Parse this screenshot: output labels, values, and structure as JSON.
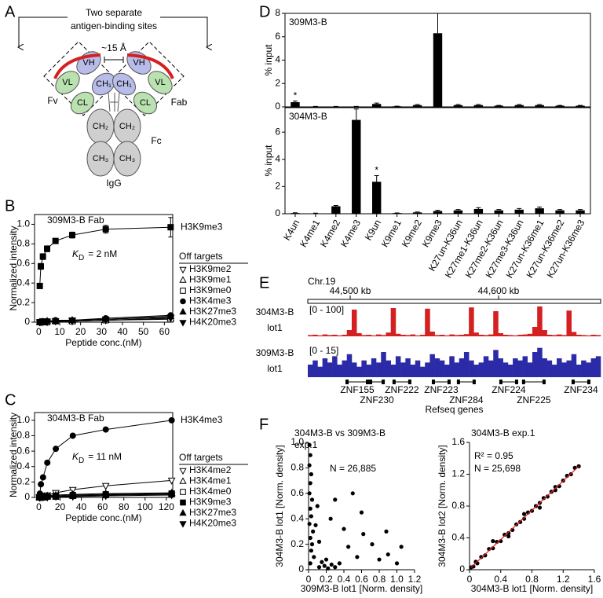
{
  "panel_labels": [
    "A",
    "B",
    "C",
    "D",
    "E",
    "F"
  ],
  "diagram": {
    "caption_lines": [
      "Two separate",
      "antigen-binding sites"
    ],
    "distance": "~15 Å",
    "domains": {
      "vh": "VH",
      "vl": "VL",
      "ch1": "CH₁",
      "cl": "CL",
      "ch2": "CH₂",
      "ch3": "CH₃"
    },
    "labels": {
      "fv": "Fv",
      "fab": "Fab",
      "fc": "Fc",
      "igg": "IgG"
    }
  },
  "chart_data": [
    {
      "type": "line",
      "title": "309M3-B Fab",
      "xlabel": "Peptide conc.(nM)",
      "ylabel": "Normalized intensity",
      "x": [
        0.5,
        1,
        2,
        4,
        8,
        16,
        32,
        63
      ],
      "xlim": [
        -2,
        64
      ],
      "xticks": [
        0,
        10,
        20,
        30,
        40,
        50,
        60
      ],
      "ylim": [
        0,
        1.1
      ],
      "yticks": [
        0,
        0.2,
        0.4,
        0.6,
        0.8,
        {
          "value": 1,
          "label": "1.0"
        }
      ],
      "kd": {
        "symbol": "K",
        "subscript": "D",
        "text": "= 2 nM"
      },
      "legend_title": "Off targets",
      "series": [
        {
          "name": "H3K9me3",
          "color": "#000000",
          "marker": "square",
          "values": [
            0.37,
            0.57,
            0.67,
            0.75,
            0.83,
            0.89,
            0.95,
            0.97
          ],
          "errors": [
            0.02,
            0.03,
            0.03,
            0.03,
            0.02,
            0.03,
            0.04,
            0.1
          ]
        },
        {
          "name": "H3K9me2",
          "color": "#000000",
          "marker": "triangle-down-open",
          "values": [
            0,
            0,
            0.01,
            0.01,
            0.01,
            0.02,
            0.03,
            0.05
          ]
        },
        {
          "name": "H3K9me1",
          "color": "#000000",
          "marker": "triangle-up-open",
          "values": [
            0,
            0,
            0,
            0.01,
            0.01,
            0.01,
            0.02,
            0.04
          ]
        },
        {
          "name": "H3K9me0",
          "color": "#000000",
          "marker": "square-open",
          "values": [
            0,
            0,
            0,
            0,
            0.01,
            0.01,
            0.02,
            0.03
          ]
        },
        {
          "name": "H3K4me3",
          "color": "#000000",
          "marker": "circle",
          "values": [
            0,
            0,
            0.01,
            0.01,
            0.02,
            0.02,
            0.04,
            0.07
          ]
        },
        {
          "name": "H3K27me3",
          "color": "#000000",
          "marker": "triangle-up",
          "values": [
            0,
            0,
            0,
            0.01,
            0.01,
            0.02,
            0.03,
            0.06
          ]
        },
        {
          "name": "H4K20me3",
          "color": "#000000",
          "marker": "triangle-down",
          "values": [
            0,
            0,
            0,
            0,
            0.01,
            0.01,
            0.02,
            0.04
          ]
        }
      ]
    },
    {
      "type": "line",
      "title": "304M3-B Fab",
      "xlabel": "Peptide conc.(nM)",
      "ylabel": "Normalized intensity",
      "x": [
        0.5,
        1,
        2,
        4,
        8,
        16,
        32,
        63,
        125
      ],
      "xlim": [
        -4,
        126
      ],
      "xticks": [
        0,
        20,
        40,
        60,
        80,
        100,
        120
      ],
      "ylim": [
        0,
        1.1
      ],
      "yticks": [
        0,
        0.2,
        0.4,
        0.6,
        0.8,
        {
          "value": 1,
          "label": "1.0"
        }
      ],
      "kd": {
        "symbol": "K",
        "subscript": "D",
        "text": "= 11 nM"
      },
      "legend_title": "Off targets",
      "series": [
        {
          "name": "H3K4me3",
          "color": "#000000",
          "marker": "circle",
          "values": [
            0.02,
            0.05,
            0.17,
            0.26,
            0.45,
            0.63,
            0.8,
            0.88,
            1.0
          ]
        },
        {
          "name": "H3K4me2",
          "color": "#000000",
          "marker": "triangle-down-open",
          "values": [
            0,
            0,
            0.01,
            0.02,
            0.03,
            0.06,
            0.1,
            0.15,
            0.22
          ]
        },
        {
          "name": "H3K4me1",
          "color": "#000000",
          "marker": "triangle-up-open",
          "values": [
            0,
            0,
            0,
            0.01,
            0.02,
            0.03,
            0.04,
            0.05,
            0.06
          ]
        },
        {
          "name": "H3K4me0",
          "color": "#000000",
          "marker": "square-open",
          "values": [
            0,
            0,
            0,
            0,
            0.01,
            0.01,
            0.02,
            0.03,
            0.04
          ]
        },
        {
          "name": "H3K9me3",
          "color": "#000000",
          "marker": "square",
          "values": [
            0,
            0,
            0,
            0.01,
            0.01,
            0.02,
            0.03,
            0.04,
            0.05
          ]
        },
        {
          "name": "H3K27me3",
          "color": "#000000",
          "marker": "triangle-up",
          "values": [
            0,
            0,
            0,
            0,
            0.01,
            0.01,
            0.02,
            0.03,
            0.05
          ]
        },
        {
          "name": "H4K20me3",
          "color": "#000000",
          "marker": "triangle-down",
          "values": [
            0,
            0,
            0,
            0,
            0,
            0.01,
            0.01,
            0.02,
            0.03
          ]
        }
      ]
    },
    {
      "type": "bar",
      "title": "309M3-B",
      "ylabel": "% input",
      "color": "#000000",
      "values": [
        0.4,
        0.03,
        0.03,
        0.03,
        0.25,
        0.05,
        0.15,
        6.3,
        0.15,
        0.15,
        0.1,
        0.15,
        0.15,
        0.1,
        0.1
      ],
      "errors": [
        0.1,
        0.01,
        0.01,
        0.01,
        0.08,
        0.01,
        0.05,
        1.7,
        0.05,
        0.05,
        0.03,
        0.05,
        0.05,
        0.03,
        0.03
      ],
      "ylim": [
        0,
        8
      ],
      "yticks": [
        0,
        2,
        4,
        6,
        8
      ],
      "annotations": [
        {
          "text": "*",
          "index": 0
        }
      ]
    },
    {
      "type": "bar",
      "title": "304M3-B",
      "ylabel": "% input",
      "color": "#000000",
      "categories": [
        "K4un",
        "K4me1",
        "K4me2",
        "K4me3",
        "K9un",
        "K9me1",
        "K9me2",
        "K9me3",
        "K27un-K36un",
        "K27me1-K36un",
        "K27me2-K36un",
        "K27me3-K36un",
        "K27un-K36me1",
        "K27un-K36me2",
        "K27un-K36me3"
      ],
      "values": [
        0.05,
        0.03,
        0.55,
        6.9,
        2.35,
        0.05,
        0.1,
        0.2,
        0.25,
        0.35,
        0.25,
        0.3,
        0.4,
        0.25,
        0.25
      ],
      "errors": [
        0.02,
        0.01,
        0.06,
        0.8,
        0.45,
        0.01,
        0.03,
        0.05,
        0.06,
        0.1,
        0.06,
        0.08,
        0.1,
        0.06,
        0.06
      ],
      "ylim": [
        0,
        7.8
      ],
      "yticks": [
        0,
        2,
        4,
        6
      ],
      "annotations": [
        {
          "text": "*",
          "index": 4
        }
      ]
    },
    {
      "type": "track",
      "title": "Chr.19",
      "xlim": [
        44471.4,
        44668.8
      ],
      "xticks": [
        {
          "value": 44500,
          "label": "44,500 kb"
        },
        {
          "value": 44600,
          "label": "44,600 kb"
        }
      ],
      "tracks": [
        {
          "name": [
            "304M3-B",
            "lot1"
          ],
          "range": "[0 - 100]",
          "ylim": [
            0,
            100
          ],
          "color": "#d42020",
          "values": [
            4,
            5,
            3,
            6,
            4,
            5,
            3,
            5,
            20,
            85,
            10,
            4,
            5,
            3,
            6,
            4,
            12,
            90,
            8,
            5,
            4,
            6,
            3,
            5,
            88,
            15,
            4,
            5,
            3,
            6,
            4,
            5,
            7,
            92,
            12,
            5,
            4,
            6,
            80,
            10,
            5,
            4,
            3,
            5,
            6,
            8,
            30,
            95,
            20,
            5,
            4,
            6,
            4,
            82,
            14,
            5,
            4,
            3,
            5,
            4
          ]
        },
        {
          "name": [
            "309M3-B",
            "lot1"
          ],
          "range": "[0 - 15]",
          "ylim": [
            0,
            15
          ],
          "color": "#2b2ba8",
          "values": [
            6,
            8,
            5,
            9,
            7,
            10,
            6,
            8,
            11,
            7,
            5,
            8,
            6,
            9,
            7,
            12,
            8,
            6,
            10,
            7,
            9,
            6,
            8,
            5,
            7,
            11,
            9,
            8,
            6,
            10,
            7,
            9,
            12,
            8,
            6,
            7,
            10,
            8,
            13,
            9,
            7,
            6,
            9,
            8,
            10,
            7,
            12,
            14,
            9,
            8,
            6,
            9,
            7,
            8,
            11,
            6,
            8,
            7,
            9,
            10
          ]
        }
      ],
      "genes": [
        {
          "label": "ZNF155",
          "start": 44496.8,
          "end": 44512.7
        },
        {
          "label": "ZNF230",
          "start": 44512.7,
          "end": 44523.3
        },
        {
          "label": "ZNF222",
          "start": 44528.5,
          "end": 44541.2
        },
        {
          "label": "ZNF223",
          "start": 44555.0,
          "end": 44567.7
        },
        {
          "label": "ZNF284",
          "start": 44571.9,
          "end": 44584.6
        },
        {
          "label": "ZNF224",
          "start": 44600.5,
          "end": 44613.2
        },
        {
          "label": "ZNF225",
          "start": 44615.8,
          "end": 44631.7
        },
        {
          "label": "ZNF234",
          "start": 44649.2,
          "end": 44661.9
        }
      ],
      "genes_label": "Refseq genes"
    },
    {
      "type": "scatter",
      "title": [
        "304M3-B vs 309M3-B",
        "exp.1"
      ],
      "annotations": [
        "N = 26,885"
      ],
      "xlabel": "309M3-B lot1 [Norm. density]",
      "ylabel": "304M3-B lot1 [Norm. density]",
      "color": "#000000",
      "xlim": [
        0,
        1.2
      ],
      "xticks": [
        0,
        0.2,
        0.4,
        0.6,
        0.8,
        {
          "value": 1,
          "label": "1.0"
        },
        1.2
      ],
      "ylim": [
        0,
        1.0
      ],
      "yticks": [
        0,
        0.2,
        0.4,
        0.6,
        0.8,
        {
          "value": 1,
          "label": "1.0"
        }
      ],
      "x": [
        0.01,
        0.02,
        0.01,
        0.03,
        0.02,
        0.01,
        0.04,
        0.02,
        0.03,
        0.01,
        0.05,
        0.02,
        0.04,
        0.03,
        0.06,
        0.02,
        0.08,
        0.1,
        0.12,
        0.12,
        0.18,
        0.22,
        0.26,
        0.3,
        0.35,
        0.15,
        0.2,
        0.45,
        0.55,
        0.62,
        0.72,
        0.8,
        0.9,
        1.0,
        1.05,
        0.88,
        0.6,
        0.4,
        0.3,
        0.25,
        0.5
      ],
      "y": [
        0.98,
        0.9,
        0.82,
        0.75,
        0.68,
        0.6,
        0.55,
        0.48,
        0.42,
        0.36,
        0.3,
        0.25,
        0.2,
        0.15,
        0.1,
        0.05,
        0.35,
        0.5,
        0.22,
        0.02,
        0.03,
        0.01,
        0.04,
        0.02,
        0.05,
        0.06,
        0.08,
        0.18,
        0.1,
        0.28,
        0.2,
        0.08,
        0.12,
        0.05,
        0.18,
        0.3,
        0.45,
        0.32,
        0.55,
        0.4,
        0.6
      ]
    },
    {
      "type": "scatter",
      "title": [
        "304M3-B exp.1"
      ],
      "annotations": [
        "R² = 0.95",
        "N = 25,698"
      ],
      "xlabel": "304M3-B lot1 [Norm. density]",
      "ylabel": "304M3-B lot2 [Norm. density]",
      "color": "#000000",
      "trendline": true,
      "trend_color": "#e02020",
      "xlim": [
        0,
        1.6
      ],
      "xticks": [
        0,
        0.4,
        0.8,
        1.2,
        1.6
      ],
      "ylim": [
        0,
        1.6
      ],
      "yticks": [
        0,
        0.4,
        0.8,
        1.2,
        1.6
      ],
      "x": [
        0.02,
        0.05,
        0.08,
        0.1,
        0.15,
        0.2,
        0.25,
        0.3,
        0.35,
        0.4,
        0.45,
        0.5,
        0.55,
        0.6,
        0.65,
        0.7,
        0.75,
        0.8,
        0.85,
        0.9,
        0.95,
        1.0,
        1.05,
        1.1,
        1.15,
        1.2,
        1.25,
        1.3,
        1.35,
        1.4,
        0.3,
        0.5,
        0.7,
        0.9,
        1.1
      ],
      "y": [
        0.03,
        0.04,
        0.1,
        0.08,
        0.16,
        0.18,
        0.26,
        0.27,
        0.35,
        0.36,
        0.44,
        0.46,
        0.5,
        0.57,
        0.6,
        0.64,
        0.72,
        0.74,
        0.8,
        0.84,
        0.9,
        0.92,
        0.98,
        1.04,
        1.05,
        1.12,
        1.18,
        1.2,
        1.28,
        1.3,
        0.36,
        0.42,
        0.7,
        0.78,
        1.0
      ]
    }
  ]
}
